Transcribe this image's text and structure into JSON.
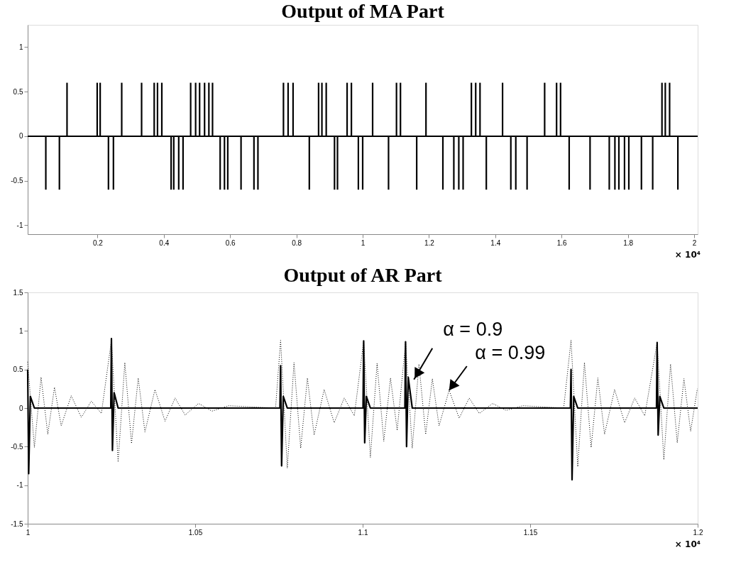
{
  "chart_data": [
    {
      "type": "bar",
      "title": "Output of MA Part",
      "color": "#000000",
      "x": [
        0.044,
        0.085,
        0.108,
        0.199,
        0.208,
        0.233,
        0.248,
        0.273,
        0.333,
        0.371,
        0.381,
        0.394,
        0.422,
        0.43,
        0.445,
        0.458,
        0.481,
        0.496,
        0.508,
        0.523,
        0.536,
        0.547,
        0.57,
        0.583,
        0.593,
        0.633,
        0.672,
        0.684,
        0.761,
        0.775,
        0.79,
        0.839,
        0.867,
        0.877,
        0.89,
        0.915,
        0.924,
        0.953,
        0.966,
        0.987,
        1.0,
        1.03,
        1.078,
        1.102,
        1.114,
        1.163,
        1.191,
        1.242,
        1.275,
        1.29,
        1.303,
        1.328,
        1.341,
        1.354,
        1.373,
        1.422,
        1.447,
        1.462,
        1.496,
        1.549,
        1.585,
        1.597,
        1.623,
        1.686,
        1.744,
        1.761,
        1.773,
        1.79,
        1.803,
        1.841,
        1.875,
        1.903,
        1.913,
        1.926,
        1.951
      ],
      "values": [
        -0.6,
        -0.6,
        0.6,
        0.6,
        0.6,
        -0.6,
        -0.6,
        0.6,
        0.6,
        0.6,
        0.6,
        0.6,
        -0.6,
        -0.6,
        -0.6,
        -0.6,
        0.6,
        0.6,
        0.6,
        0.6,
        0.6,
        0.6,
        -0.6,
        -0.6,
        -0.6,
        -0.6,
        -0.6,
        -0.6,
        0.6,
        0.6,
        0.6,
        -0.6,
        0.6,
        0.6,
        0.6,
        -0.6,
        -0.6,
        0.6,
        0.6,
        -0.6,
        -0.6,
        0.6,
        -0.6,
        0.6,
        0.6,
        -0.6,
        0.6,
        -0.6,
        -0.6,
        -0.6,
        -0.6,
        0.6,
        0.6,
        0.6,
        -0.6,
        0.6,
        -0.6,
        -0.6,
        -0.6,
        0.6,
        0.6,
        0.6,
        -0.6,
        -0.6,
        -0.6,
        -0.6,
        -0.6,
        -0.6,
        -0.6,
        -0.6,
        -0.6,
        0.6,
        0.6,
        0.6,
        -0.6
      ],
      "xlim": [
        0,
        2
      ],
      "xticks": [
        0.2,
        0.4,
        0.6,
        0.8,
        1,
        1.2,
        1.4,
        1.6,
        1.8,
        2
      ],
      "ylim": [
        -1.1,
        1.25
      ],
      "yticks": [
        -1,
        -0.5,
        0,
        0.5,
        1
      ],
      "ref_lines": [
        {
          "axis": "y",
          "value": 0,
          "color": "#000000"
        }
      ],
      "annotations": [
        "× 10⁴"
      ]
    },
    {
      "type": "line",
      "title": "Output of AR Part",
      "series": [
        {
          "color": "#000000",
          "line_style": "dotted",
          "x": [
            1.0,
            1.002,
            1.004,
            1.006,
            1.008,
            1.01,
            1.013,
            1.016,
            1.019,
            1.022,
            1.025,
            1.027,
            1.029,
            1.031,
            1.033,
            1.035,
            1.038,
            1.041,
            1.044,
            1.047,
            1.051,
            1.055,
            1.06,
            1.074,
            1.0755,
            1.0775,
            1.0795,
            1.0815,
            1.0835,
            1.0855,
            1.0885,
            1.0915,
            1.0945,
            1.0975,
            1.1003,
            1.1023,
            1.1043,
            1.1063,
            1.1083,
            1.1103,
            1.1128,
            1.1148,
            1.1168,
            1.1188,
            1.1208,
            1.1228,
            1.1258,
            1.1288,
            1.1318,
            1.1348,
            1.1388,
            1.1428,
            1.1478,
            1.16,
            1.1622,
            1.1642,
            1.1662,
            1.1682,
            1.1702,
            1.1722,
            1.1752,
            1.1782,
            1.1812,
            1.1842,
            1.1879,
            1.1899,
            1.1919,
            1.1939,
            1.1959,
            1.1979,
            1.1999
          ],
          "values": [
            0.6,
            -0.51,
            0.4,
            -0.34,
            0.27,
            -0.23,
            0.16,
            -0.12,
            0.09,
            -0.07,
            0.88,
            -0.7,
            0.59,
            -0.46,
            0.39,
            -0.31,
            0.24,
            -0.17,
            0.13,
            -0.09,
            0.06,
            -0.04,
            0.03,
            0,
            0.88,
            -0.78,
            0.59,
            -0.52,
            0.39,
            -0.35,
            0.24,
            -0.19,
            0.13,
            -0.1,
            0.87,
            -0.64,
            0.58,
            -0.43,
            0.39,
            -0.29,
            0.85,
            -0.52,
            0.57,
            -0.34,
            0.38,
            -0.23,
            0.23,
            -0.13,
            0.13,
            -0.07,
            0.06,
            -0.03,
            0.03,
            0,
            0.88,
            -0.76,
            0.59,
            -0.51,
            0.39,
            -0.34,
            0.24,
            -0.19,
            0.13,
            -0.1,
            0.85,
            -0.67,
            0.57,
            -0.45,
            0.38,
            -0.3,
            0.25
          ]
        },
        {
          "color": "#000000",
          "line_style": "solid",
          "x": [
            1.0,
            1.0003,
            1.0008,
            1.002,
            1.0248,
            1.025,
            1.0253,
            1.0258,
            1.027,
            1.0753,
            1.0755,
            1.0758,
            1.0763,
            1.0775,
            1.1001,
            1.1003,
            1.1006,
            1.1011,
            1.1023,
            1.1126,
            1.1128,
            1.1131,
            1.1136,
            1.1148,
            1.162,
            1.1622,
            1.1625,
            1.163,
            1.1642,
            1.1877,
            1.1879,
            1.1882,
            1.1887,
            1.1899,
            1.2
          ],
          "values": [
            0.5,
            -0.85,
            0.15,
            0,
            0,
            0.9,
            -0.55,
            0.2,
            0,
            0,
            0.55,
            -0.75,
            0.15,
            0,
            0,
            0.87,
            -0.45,
            0.15,
            0,
            0,
            0.86,
            -0.5,
            0.4,
            0,
            0,
            0.5,
            -0.93,
            0.15,
            0,
            0,
            0.85,
            -0.35,
            0.15,
            0,
            0
          ]
        }
      ],
      "xlim": [
        1,
        1.2
      ],
      "xticks": [
        1,
        1.05,
        1.1,
        1.15,
        1.2
      ],
      "ylim": [
        -1.5,
        1.5
      ],
      "yticks": [
        -1.5,
        -1,
        -0.5,
        0,
        0.5,
        1,
        1.5
      ],
      "annotations": [
        "× 10⁴",
        {
          "text": "α = 0.9",
          "x": 1.1153,
          "y": 0.37
        },
        {
          "text": "α = 0.99",
          "x": 1.1258,
          "y": 0.23
        }
      ]
    }
  ]
}
